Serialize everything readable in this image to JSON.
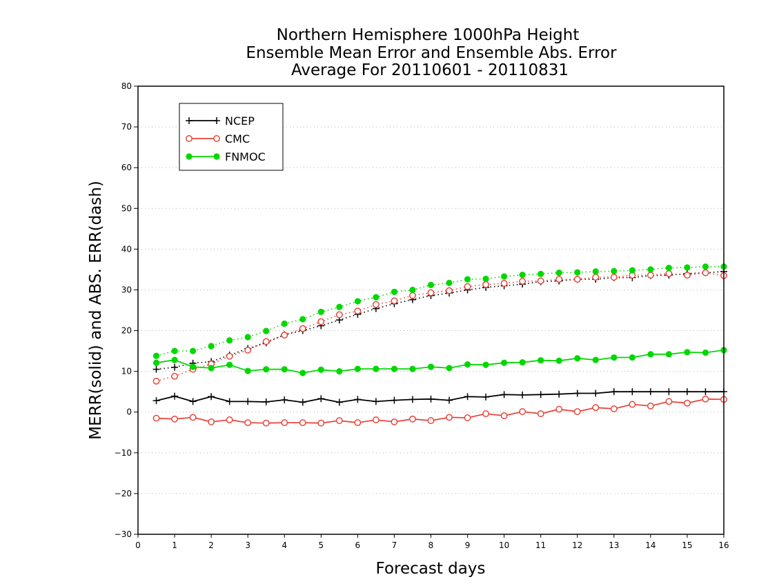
{
  "chart_data": {
    "type": "line",
    "title": [
      "Northern Hemisphere 1000hPa Height",
      "Ensemble Mean Error and Ensemble Abs. Error",
      "Average For 20110601 - 20110831"
    ],
    "xlabel": "Forecast days",
    "ylabel": "MERR(solid) and ABS. ERR(dash)",
    "xlim": [
      0,
      16
    ],
    "ylim": [
      -30,
      80
    ],
    "xticks": [
      "0",
      "1",
      "2",
      "3",
      "4",
      "5",
      "6",
      "7",
      "8",
      "9",
      "10",
      "11",
      "12",
      "13",
      "14",
      "15",
      "16"
    ],
    "yticks": [
      "−30",
      "−20",
      "−10",
      "0",
      "10",
      "20",
      "30",
      "40",
      "50",
      "60",
      "70",
      "80"
    ],
    "grid": true,
    "legend_position": "top-left",
    "x": [
      0.5,
      1,
      1.5,
      2,
      2.5,
      3,
      3.5,
      4,
      4.5,
      5,
      5.5,
      6,
      6.5,
      7,
      7.5,
      8,
      8.5,
      9,
      9.5,
      10,
      10.5,
      11,
      11.5,
      12,
      12.5,
      13,
      13.5,
      14,
      14.5,
      15,
      15.5,
      16
    ],
    "series": [
      {
        "name": "NCEP",
        "color": "#000000",
        "marker": "plus",
        "merr": [
          2.8,
          3.9,
          2.6,
          3.8,
          2.6,
          2.6,
          2.5,
          3.0,
          2.4,
          3.3,
          2.4,
          3.1,
          2.6,
          2.9,
          3.1,
          3.2,
          2.9,
          3.8,
          3.7,
          4.3,
          4.2,
          4.3,
          4.4,
          4.6,
          4.6,
          5.0,
          5.0,
          5.0,
          5.0,
          5.0,
          5.0,
          5.0
        ],
        "abs_err": [
          10.5,
          11.0,
          12.0,
          12.4,
          14.0,
          15.6,
          17.0,
          19.0,
          20.0,
          21.2,
          22.6,
          24.0,
          25.4,
          26.6,
          27.6,
          28.6,
          29.2,
          30.0,
          30.6,
          31.0,
          31.4,
          32.0,
          32.2,
          32.6,
          32.6,
          33.0,
          33.0,
          33.5,
          33.6,
          34.0,
          34.2,
          34.5
        ]
      },
      {
        "name": "CMC",
        "color": "#e8453c",
        "marker": "circle",
        "merr": [
          -1.5,
          -1.7,
          -1.3,
          -2.4,
          -1.9,
          -2.6,
          -2.7,
          -2.6,
          -2.6,
          -2.7,
          -2.1,
          -2.6,
          -1.9,
          -2.4,
          -1.7,
          -2.1,
          -1.3,
          -1.4,
          -0.4,
          -0.9,
          0.1,
          -0.4,
          0.7,
          0.1,
          1.1,
          0.8,
          1.9,
          1.5,
          2.6,
          2.2,
          3.2,
          3.1
        ],
        "abs_err": [
          7.6,
          8.8,
          10.5,
          11.8,
          13.7,
          15.2,
          17.3,
          18.9,
          20.5,
          22.2,
          23.9,
          24.8,
          26.4,
          27.3,
          28.6,
          29.3,
          29.8,
          30.8,
          31.3,
          31.6,
          32.1,
          32.2,
          32.6,
          32.6,
          33.1,
          33.1,
          33.6,
          33.6,
          34.0,
          33.6,
          34.2,
          33.5
        ]
      },
      {
        "name": "FNMOC",
        "color": "#00d800",
        "marker": "dot",
        "merr": [
          12.1,
          12.8,
          11.1,
          10.8,
          11.6,
          10.1,
          10.5,
          10.5,
          9.6,
          10.4,
          10.0,
          10.6,
          10.6,
          10.6,
          10.6,
          11.1,
          10.8,
          11.7,
          11.6,
          12.1,
          12.2,
          12.7,
          12.6,
          13.2,
          12.8,
          13.4,
          13.4,
          14.2,
          14.2,
          14.7,
          14.6,
          15.2
        ],
        "abs_err": [
          13.8,
          15.0,
          15.0,
          16.2,
          17.6,
          18.4,
          19.9,
          21.7,
          22.8,
          24.6,
          25.8,
          27.2,
          28.2,
          29.5,
          30.0,
          31.2,
          31.7,
          32.6,
          32.7,
          33.3,
          33.7,
          33.9,
          34.2,
          34.3,
          34.5,
          34.6,
          34.8,
          35.0,
          35.4,
          35.5,
          35.7,
          35.7
        ]
      }
    ]
  }
}
